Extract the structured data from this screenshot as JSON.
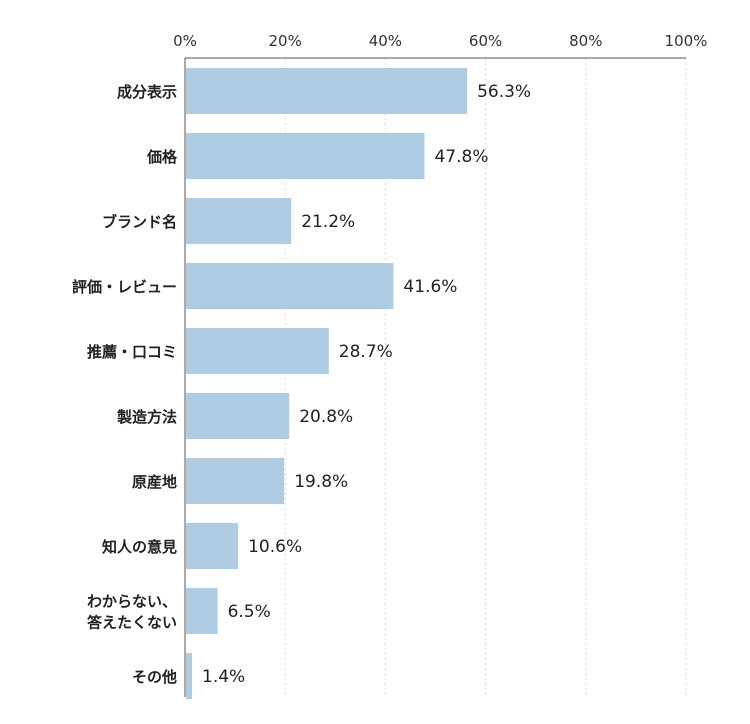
{
  "chart_data": {
    "type": "bar",
    "orientation": "horizontal",
    "title": "",
    "xlabel": "",
    "ylabel": "",
    "xlim": [
      0,
      100
    ],
    "ticks": [
      "0%",
      "20%",
      "40%",
      "60%",
      "80%",
      "100%"
    ],
    "tick_values": [
      0,
      20,
      40,
      60,
      80,
      100
    ],
    "grid": true,
    "categories": [
      [
        "成分表示"
      ],
      [
        "価格"
      ],
      [
        "ブランド名"
      ],
      [
        "評価・レビュー"
      ],
      [
        "推薦・口コミ"
      ],
      [
        "製造方法"
      ],
      [
        "原産地"
      ],
      [
        "知人の意見"
      ],
      [
        "わからない、",
        "答えたくない"
      ],
      [
        "その他"
      ]
    ],
    "values": [
      56.3,
      47.8,
      21.2,
      41.6,
      28.7,
      20.8,
      19.8,
      10.6,
      6.5,
      1.4
    ],
    "value_labels": [
      "56.3%",
      "47.8%",
      "21.2%",
      "41.6%",
      "28.7%",
      "20.8%",
      "19.8%",
      "10.6%",
      "6.5%",
      "1.4%"
    ],
    "bar_color": "#b0cce2",
    "grid_color": "#d9d9d9",
    "axis_color": "#555555"
  }
}
